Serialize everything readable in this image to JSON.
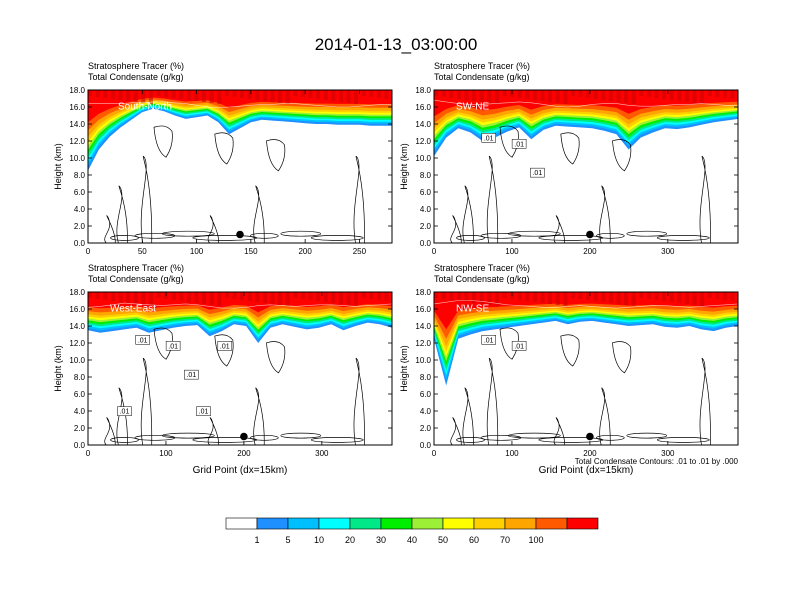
{
  "figure_title": "2014-01-13_03:00:00",
  "footer_note": "Total Condensate Contours: .01 to .01 by .000",
  "colorbar": {
    "labels": [
      "1",
      "5",
      "10",
      "20",
      "30",
      "40",
      "50",
      "60",
      "70",
      "100"
    ],
    "colors": [
      "#ffffff",
      "#1e90ff",
      "#00bfff",
      "#00ffff",
      "#00e887",
      "#00ee00",
      "#9cf036",
      "#ffff00",
      "#ffd000",
      "#ffa500",
      "#ff5a00",
      "#ff0000"
    ]
  },
  "chart_data": [
    {
      "type": "heatmap",
      "panel": "top-left",
      "title": "Stratosphere Tracer   (%)",
      "subtitle": "Total Condensate   (g/kg)",
      "cross_section_label": "South-North",
      "xlabel": "",
      "ylabel": "Height (km)",
      "xlim": [
        0,
        280
      ],
      "ylim": [
        0,
        18
      ],
      "xticks": [
        0,
        50,
        100,
        150,
        200,
        250
      ],
      "yticks": [
        "0.0",
        "2.0",
        "4.0",
        "6.0",
        "8.0",
        "10.0",
        "12.0",
        "14.0",
        "16.0",
        "18.0"
      ],
      "tracer_top_km": [
        16.4,
        16.4,
        16.4,
        16.4,
        16.5,
        16.5,
        16.6,
        16.6,
        16.5,
        16.4,
        16.2,
        16.0,
        15.9,
        16.0,
        16.1,
        16.2,
        16.3,
        16.3,
        16.4,
        16.4,
        16.3,
        16.2,
        16.1,
        16.0,
        16.0,
        16.1,
        16.2,
        16.3,
        16.3
      ],
      "tracer_bottom_km": [
        8.5,
        11.0,
        12.5,
        13.6,
        14.5,
        15.4,
        15.8,
        15.5,
        15.0,
        14.6,
        14.8,
        15.0,
        14.2,
        12.8,
        13.5,
        14.2,
        14.5,
        14.4,
        14.3,
        14.2,
        14.1,
        14.0,
        14.0,
        13.9,
        13.9,
        13.9,
        13.8,
        13.8,
        13.8
      ],
      "contour_labels": [],
      "marker_x": 140,
      "marker_height_km": 1.0
    },
    {
      "type": "heatmap",
      "panel": "top-right",
      "title": "Stratosphere Tracer   (%)",
      "subtitle": "Total Condensate   (g/kg)",
      "cross_section_label": "SW-NE",
      "xlabel": "",
      "ylabel": "Height (km)",
      "xlim": [
        0,
        390
      ],
      "ylim": [
        0,
        18
      ],
      "xticks": [
        0,
        100,
        200,
        300
      ],
      "yticks": [
        "0.0",
        "2.0",
        "4.0",
        "6.0",
        "8.0",
        "10.0",
        "12.0",
        "14.0",
        "16.0",
        "18.0"
      ],
      "tracer_top_km": [
        16.8,
        16.6,
        16.4,
        16.3,
        16.3,
        16.4,
        16.5,
        16.6,
        16.5,
        16.3,
        16.1,
        16.0,
        16.1,
        16.3,
        16.4,
        16.4,
        16.2,
        16.1,
        16.1,
        16.2,
        16.3,
        16.3,
        16.4,
        16.3,
        16.2,
        16.2
      ],
      "tracer_bottom_km": [
        10.2,
        12.4,
        13.5,
        13.0,
        12.0,
        12.4,
        13.1,
        13.6,
        12.2,
        13.3,
        13.8,
        13.7,
        13.6,
        13.5,
        13.2,
        12.8,
        11.0,
        12.4,
        13.0,
        13.5,
        13.4,
        13.6,
        13.9,
        14.2,
        14.4,
        14.6
      ],
      "contour_labels": [
        ".01",
        ".01",
        ".01"
      ],
      "marker_x": 200,
      "marker_height_km": 1.0
    },
    {
      "type": "heatmap",
      "panel": "bottom-left",
      "title": "Stratosphere Tracer   (%)",
      "subtitle": "Total Condensate   (g/kg)",
      "cross_section_label": "West-East",
      "xlabel": "Grid Point (dx=15km)",
      "ylabel": "Height (km)",
      "xlim": [
        0,
        390
      ],
      "ylim": [
        0,
        18
      ],
      "xticks": [
        0,
        100,
        200,
        300
      ],
      "yticks": [
        "0.0",
        "2.0",
        "4.0",
        "6.0",
        "8.0",
        "10.0",
        "12.0",
        "14.0",
        "16.0",
        "18.0"
      ],
      "tracer_top_km": [
        16.2,
        16.3,
        16.5,
        16.7,
        16.6,
        16.5,
        16.4,
        16.5,
        16.6,
        16.5,
        16.3,
        16.1,
        16.1,
        16.2,
        16.4,
        16.5,
        16.4,
        16.3,
        16.4,
        16.5,
        16.5,
        16.4,
        16.3,
        16.4,
        16.5,
        16.6
      ],
      "tracer_bottom_km": [
        13.5,
        13.2,
        13.4,
        13.6,
        13.8,
        13.2,
        13.5,
        13.8,
        14.0,
        14.1,
        12.8,
        13.4,
        14.2,
        14.0,
        12.0,
        13.8,
        14.2,
        13.9,
        13.6,
        13.8,
        14.2,
        13.5,
        14.0,
        14.4,
        14.2,
        13.8
      ],
      "contour_labels": [
        ".01",
        ".01",
        ".01",
        ".01",
        ".01",
        ".01"
      ],
      "marker_x": 200,
      "marker_height_km": 1.0
    },
    {
      "type": "heatmap",
      "panel": "bottom-right",
      "title": "Stratosphere Tracer   (%)",
      "subtitle": "Total Condensate   (g/kg)",
      "cross_section_label": "NW-SE",
      "xlabel": "Grid Point (dx=15km)",
      "ylabel": "Height (km)",
      "xlim": [
        0,
        390
      ],
      "ylim": [
        0,
        18
      ],
      "xticks": [
        0,
        100,
        200,
        300
      ],
      "yticks": [
        "0.0",
        "2.0",
        "4.0",
        "6.0",
        "8.0",
        "10.0",
        "12.0",
        "14.0",
        "16.0",
        "18.0"
      ],
      "tracer_top_km": [
        16.6,
        16.8,
        17.0,
        17.0,
        16.9,
        16.7,
        16.5,
        16.4,
        16.3,
        16.2,
        16.2,
        16.3,
        16.4,
        16.3,
        16.2,
        16.1,
        16.2,
        16.3,
        16.4,
        16.4,
        16.3,
        16.2,
        16.3,
        16.4,
        16.5,
        16.6
      ],
      "tracer_bottom_km": [
        12.5,
        7.0,
        12.5,
        13.0,
        13.4,
        13.6,
        13.8,
        14.0,
        14.2,
        14.4,
        14.6,
        14.2,
        14.5,
        14.6,
        14.4,
        14.2,
        14.0,
        14.1,
        14.2,
        13.9,
        13.8,
        14.0,
        13.6,
        13.4,
        13.8,
        14.0
      ],
      "contour_labels": [
        ".01",
        ".01"
      ],
      "marker_x": 200,
      "marker_height_km": 1.0
    }
  ]
}
